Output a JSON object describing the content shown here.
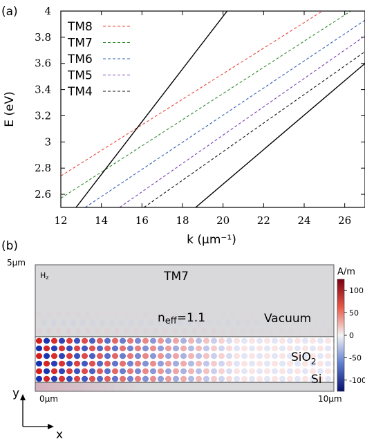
{
  "panel_a": {
    "label": "(a)",
    "chart_data": {
      "type": "line",
      "xlabel": "k (µm⁻¹)",
      "ylabel": "E (eV)",
      "xlim": [
        12,
        27
      ],
      "ylim": [
        2.5,
        4.0
      ],
      "xticks": [
        "12",
        "14",
        "16",
        "18",
        "20",
        "22",
        "24",
        "26"
      ],
      "yticks": [
        "2.6",
        "2.8",
        "3",
        "3.2",
        "3.4",
        "3.6",
        "3.8",
        "4"
      ],
      "legend_position": "top-left",
      "series": [
        {
          "name": "TM8",
          "color": "#e8473b",
          "style": "dashed",
          "x": [
            12,
            24.9
          ],
          "y": [
            2.74,
            4.0
          ]
        },
        {
          "name": "TM7",
          "color": "#2e8b2e",
          "style": "dashed",
          "x": [
            12,
            26.3
          ],
          "y": [
            2.57,
            4.0
          ]
        },
        {
          "name": "TM6",
          "color": "#2f5fb5",
          "style": "dashed",
          "x": [
            13.2,
            27.0
          ],
          "y": [
            2.5,
            3.93
          ]
        },
        {
          "name": "TM5",
          "color": "#7a3fb5",
          "style": "dashed",
          "x": [
            14.9,
            27.0
          ],
          "y": [
            2.5,
            3.81
          ]
        },
        {
          "name": "TM4",
          "color": "#111111",
          "style": "dashed",
          "x": [
            16.1,
            27.0
          ],
          "y": [
            2.5,
            3.69
          ]
        },
        {
          "name": "",
          "color": "#000000",
          "style": "solid",
          "x": [
            12.75,
            20.2
          ],
          "y": [
            2.5,
            4.0
          ]
        },
        {
          "name": "",
          "color": "#000000",
          "style": "solid",
          "x": [
            18.65,
            27.0
          ],
          "y": [
            2.5,
            3.6
          ]
        }
      ]
    }
  },
  "panel_b": {
    "label": "(b)",
    "field_label": "H",
    "field_sub": "z",
    "mode": "TM7",
    "neff_main": "n",
    "neff_sub": "eff",
    "neff_val": "=1.1",
    "regions": [
      "Vacuum",
      "SiO",
      "Si"
    ],
    "sio2_sub": "2",
    "y_top": "5µm",
    "x_left": "0µm",
    "x_right": "10µm",
    "axis_y": "y",
    "axis_x": "x",
    "colorbar": {
      "unit": "A/m",
      "ticks": [
        "100",
        "50",
        "0",
        "-50",
        "-100"
      ],
      "values": [
        100,
        50,
        0,
        -50,
        -100
      ],
      "range": [
        -125,
        125
      ]
    }
  }
}
